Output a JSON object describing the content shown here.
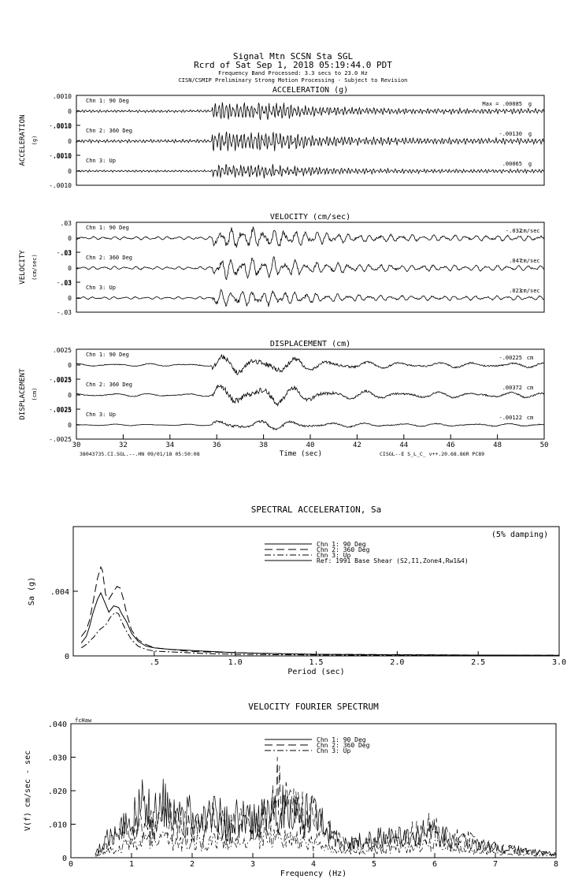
{
  "header": {
    "line1": "Signal Mtn    SCSN Sta SGL",
    "line2": "Rcrd of Sat Sep  1, 2018 05:19:44.0 PDT",
    "line3": "Frequency Band Processed: 3.3 secs to 23.0 Hz",
    "line4": "CISN/CSMIP Preliminary Strong Motion Processing - Subject to Revision"
  },
  "time_series": {
    "x_range": [
      30,
      50
    ],
    "x_ticks": [
      "30",
      "32",
      "34",
      "36",
      "38",
      "40",
      "42",
      "44",
      "46",
      "48",
      "50"
    ],
    "xlabel": "Time (sec)",
    "footer_left": "38043735.CI.SGL.--.HN 09/01/18 05:50:08",
    "footer_right": "CISGL--E  S_L_C_  v++.20.68.86R PC89",
    "panels": [
      {
        "id": "acc",
        "title": "ACCELERATION (g)",
        "side_label": "ACCELERATION",
        "unit_label": "(g)",
        "scale": 0.001,
        "tick_top": ".0010",
        "tick_zero": "0",
        "tick_bottom": "-.0010",
        "traces": [
          {
            "channel": "Chn 1: 90 Deg",
            "max_prefix": "Max = ",
            "max_value": ".00085",
            "unit": "g",
            "peak": 0.00085
          },
          {
            "channel": "Chn 2: 360 Deg",
            "max_prefix": "",
            "max_value": "-.00130",
            "unit": "g",
            "peak": 0.0013
          },
          {
            "channel": "Chn 3: Up",
            "max_prefix": "",
            "max_value": ".00065",
            "unit": "g",
            "peak": 0.00065
          }
        ]
      },
      {
        "id": "vel",
        "title": "VELOCITY (cm/sec)",
        "side_label": "VELOCITY",
        "unit_label": "(cm/sec)",
        "scale": 0.03,
        "tick_top": ".03",
        "tick_zero": "0",
        "tick_bottom": "-.03",
        "traces": [
          {
            "channel": "Chn 1: 90 Deg",
            "max_prefix": "",
            "max_value": "-.032",
            "unit": "cm/sec",
            "peak": 0.032
          },
          {
            "channel": "Chn 2: 360 Deg",
            "max_prefix": "",
            "max_value": ".047",
            "unit": "cm/sec",
            "peak": 0.047
          },
          {
            "channel": "Chn 3: Up",
            "max_prefix": "",
            "max_value": ".023",
            "unit": "cm/sec",
            "peak": 0.023
          }
        ]
      },
      {
        "id": "disp",
        "title": "DISPLACEMENT (cm)",
        "side_label": "DISPLACEMENT",
        "unit_label": "(cm)",
        "scale": 0.0025,
        "tick_top": ".0025",
        "tick_zero": "0",
        "tick_bottom": "-.0025",
        "traces": [
          {
            "channel": "Chn 1: 90 Deg",
            "max_prefix": "",
            "max_value": "-.00225",
            "unit": "cm",
            "peak": 0.00225
          },
          {
            "channel": "Chn 2: 360 Deg",
            "max_prefix": "",
            "max_value": ".00372",
            "unit": "cm",
            "peak": 0.00372
          },
          {
            "channel": "Chn 3: Up",
            "max_prefix": "",
            "max_value": "-.00122",
            "unit": "cm",
            "peak": 0.00122
          }
        ]
      }
    ]
  },
  "chart_data": [
    {
      "type": "line",
      "title": "SPECTRAL ACCELERATION, Sa",
      "annotation": "(5% damping)",
      "xlabel": "Period (sec)",
      "ylabel": "Sa (g)",
      "xlim": [
        0,
        3.0
      ],
      "ylim": [
        0,
        0.008
      ],
      "x_ticks": [
        ".5",
        "1.0",
        "1.5",
        "2.0",
        "2.5",
        "3.0"
      ],
      "x_tick_values": [
        0.5,
        1.0,
        1.5,
        2.0,
        2.5,
        3.0
      ],
      "y_ticks": [
        "0",
        ".004"
      ],
      "y_tick_values": [
        0,
        0.004
      ],
      "legend_position": "top-center",
      "series": [
        {
          "name": "Chn 1: 90 Deg",
          "dash": "",
          "x": [
            0.05,
            0.08,
            0.1,
            0.12,
            0.15,
            0.17,
            0.2,
            0.22,
            0.25,
            0.28,
            0.3,
            0.33,
            0.36,
            0.4,
            0.45,
            0.5,
            0.6,
            0.7,
            0.8,
            1.0,
            1.2,
            1.5,
            2.0,
            2.5,
            3.0
          ],
          "y": [
            0.0008,
            0.0012,
            0.0018,
            0.0026,
            0.0035,
            0.0039,
            0.0032,
            0.0027,
            0.0031,
            0.003,
            0.0026,
            0.0021,
            0.0014,
            0.0009,
            0.0006,
            0.0005,
            0.0004,
            0.00035,
            0.0003,
            0.0002,
            0.00015,
            0.0001,
            7e-05,
            5e-05,
            4e-05
          ]
        },
        {
          "name": "Chn 2: 360 Deg",
          "dash": "10,5",
          "x": [
            0.05,
            0.08,
            0.1,
            0.12,
            0.15,
            0.17,
            0.18,
            0.2,
            0.22,
            0.25,
            0.27,
            0.29,
            0.31,
            0.33,
            0.36,
            0.4,
            0.45,
            0.5,
            0.6,
            0.7,
            0.8,
            1.0,
            1.2,
            1.5,
            2.0,
            2.5,
            3.0
          ],
          "y": [
            0.0012,
            0.0016,
            0.0022,
            0.0032,
            0.0048,
            0.0055,
            0.0053,
            0.0038,
            0.0035,
            0.004,
            0.0043,
            0.0042,
            0.0035,
            0.0026,
            0.0016,
            0.001,
            0.0007,
            0.0005,
            0.0004,
            0.0003,
            0.00025,
            0.0002,
            0.00015,
            0.0001,
            8e-05,
            5e-05,
            4e-05
          ]
        },
        {
          "name": "Chn 3: Up",
          "dash": "8,3,2,3",
          "x": [
            0.05,
            0.08,
            0.1,
            0.13,
            0.16,
            0.2,
            0.23,
            0.26,
            0.28,
            0.3,
            0.33,
            0.36,
            0.4,
            0.45,
            0.5,
            0.6,
            0.7,
            0.8,
            1.0,
            1.2,
            1.5,
            2.0,
            2.5,
            3.0
          ],
          "y": [
            0.0005,
            0.0007,
            0.0009,
            0.0012,
            0.0016,
            0.0019,
            0.0024,
            0.0027,
            0.0026,
            0.0021,
            0.0015,
            0.001,
            0.0006,
            0.0004,
            0.0003,
            0.00025,
            0.0002,
            0.00015,
            0.0001,
            8e-05,
            6e-05,
            4e-05,
            3e-05,
            2e-05
          ]
        }
      ],
      "reference": {
        "name": "Ref: 1991 Base Shear (S2,I1,Zone4,Rw1&4)",
        "value": 0.0
      }
    },
    {
      "type": "line",
      "title": "VELOCITY FOURIER SPECTRUM",
      "corner_label": "fcHaw",
      "xlabel": "Frequency (Hz)",
      "ylabel": "V(f)   cm/sec - sec",
      "xlim": [
        0,
        8
      ],
      "ylim": [
        0,
        0.04
      ],
      "x_ticks": [
        "0",
        "1",
        "2",
        "3",
        "4",
        "5",
        "6",
        "7",
        "8"
      ],
      "y_ticks": [
        "0",
        ".010",
        ".020",
        ".030",
        ".040"
      ],
      "legend_position": "top-center",
      "series": [
        {
          "name": "Chn 1: 90 Deg",
          "dash": "",
          "x": [
            0.4,
            0.6,
            0.8,
            1.0,
            1.2,
            1.4,
            1.6,
            1.8,
            2.0,
            2.2,
            2.4,
            2.6,
            2.8,
            3.0,
            3.2,
            3.4,
            3.6,
            3.8,
            4.0,
            4.2,
            4.5,
            5.0,
            5.5,
            5.9,
            6.2,
            6.6,
            7.0,
            7.5,
            8.0
          ],
          "y": [
            0.001,
            0.006,
            0.009,
            0.012,
            0.016,
            0.014,
            0.018,
            0.013,
            0.012,
            0.011,
            0.013,
            0.01,
            0.012,
            0.011,
            0.012,
            0.016,
            0.014,
            0.012,
            0.013,
            0.009,
            0.004,
            0.006,
            0.006,
            0.008,
            0.006,
            0.004,
            0.003,
            0.002,
            0.001
          ]
        },
        {
          "name": "Chn 2: 360 Deg",
          "dash": "10,5",
          "x": [
            0.4,
            0.6,
            0.8,
            1.0,
            1.2,
            1.4,
            1.6,
            1.8,
            2.0,
            2.2,
            2.4,
            2.6,
            2.8,
            3.0,
            3.2,
            3.4,
            3.6,
            3.8,
            4.0,
            4.2,
            4.5,
            5.0,
            5.5,
            5.9,
            6.2,
            6.6,
            7.0,
            7.5,
            8.0
          ],
          "y": [
            0.0008,
            0.004,
            0.006,
            0.008,
            0.009,
            0.01,
            0.011,
            0.01,
            0.009,
            0.01,
            0.011,
            0.009,
            0.01,
            0.011,
            0.012,
            0.02,
            0.016,
            0.013,
            0.012,
            0.008,
            0.004,
            0.004,
            0.006,
            0.009,
            0.006,
            0.005,
            0.003,
            0.002,
            0.001
          ]
        },
        {
          "name": "Chn 3: Up",
          "dash": "8,3,2,3",
          "x": [
            0.4,
            0.6,
            0.8,
            1.0,
            1.2,
            1.4,
            1.6,
            1.8,
            2.0,
            2.2,
            2.4,
            2.6,
            2.8,
            3.0,
            3.2,
            3.4,
            3.6,
            3.8,
            4.0,
            4.2,
            4.5,
            5.0,
            5.5,
            5.9,
            6.2,
            6.6,
            7.0,
            7.5,
            8.0
          ],
          "y": [
            0.0005,
            0.002,
            0.003,
            0.004,
            0.005,
            0.006,
            0.005,
            0.004,
            0.005,
            0.004,
            0.006,
            0.005,
            0.004,
            0.005,
            0.006,
            0.007,
            0.006,
            0.005,
            0.004,
            0.003,
            0.002,
            0.002,
            0.003,
            0.004,
            0.003,
            0.002,
            0.0015,
            0.001,
            0.0008
          ]
        }
      ]
    }
  ]
}
